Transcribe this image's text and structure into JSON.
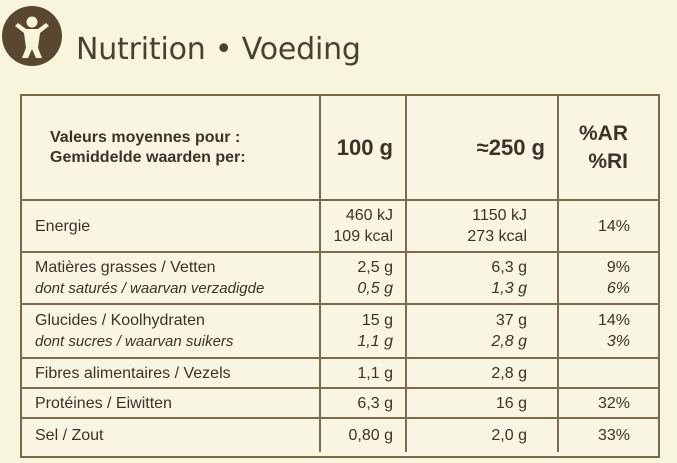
{
  "header": {
    "title": "Nutrition • Voeding",
    "logo_icon": "active-person-icon",
    "accent_color": "#5a4730"
  },
  "table": {
    "head": {
      "line1": "Valeurs moyennes pour :",
      "line2": "Gemiddelde waarden per:",
      "col_100g": "100 g",
      "col_portion": "≈250 g",
      "col_ri_1": "%AR",
      "col_ri_2": "%RI"
    },
    "rows": {
      "energy": {
        "label": "Energie",
        "v100_1": "460 kJ",
        "v100_2": "109 kcal",
        "vp_1": "1150 kJ",
        "vp_2": "273 kcal",
        "ri": "14%"
      },
      "fat": {
        "label": "Matières grasses / Vetten",
        "v100": "2,5 g",
        "vp": "6,3 g",
        "ri": "9%"
      },
      "sat": {
        "label": "dont saturés / waarvan verzadigde",
        "v100": "0,5 g",
        "vp": "1,3 g",
        "ri": "6%"
      },
      "carbs": {
        "label": "Glucides / Koolhydraten",
        "v100": "15 g",
        "vp": "37 g",
        "ri": "14%"
      },
      "sugars": {
        "label": "dont sucres / waarvan suikers",
        "v100": "1,1 g",
        "vp": "2,8 g",
        "ri": "3%"
      },
      "fibre": {
        "label": "Fibres alimentaires / Vezels",
        "v100": "1,1 g",
        "vp": "2,8 g",
        "ri": ""
      },
      "protein": {
        "label": "Protéines / Eiwitten",
        "v100": "6,3 g",
        "vp": "16 g",
        "ri": "32%"
      },
      "salt": {
        "label": "Sel / Zout",
        "v100": "0,80 g",
        "vp": "2,0 g",
        "ri": "33%"
      }
    }
  }
}
